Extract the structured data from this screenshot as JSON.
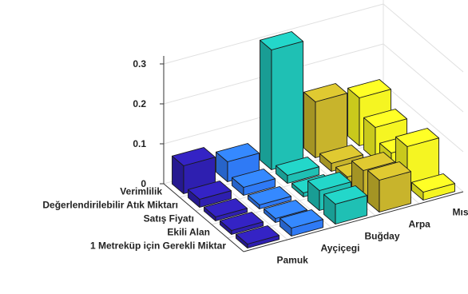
{
  "chart_data": {
    "type": "bar3d",
    "title": "",
    "xlabel": "",
    "ylabel": "",
    "zlabel": "",
    "zlim": [
      0,
      0.32
    ],
    "ztick_labels": [
      "0",
      "0.1",
      "0.2",
      "0.3"
    ],
    "grid": true,
    "criteria": [
      "Verimlilik",
      "Değerlendirilebilir Atık Miktarı",
      "Satış Fiyatı",
      "Ekili Alan",
      "1 Metreküp için Gerekli Miktar"
    ],
    "crops": [
      "Pamuk",
      "Ayçiçegi",
      "Buğday",
      "Arpa",
      "Mısır"
    ],
    "colors": [
      "#2e1fb0",
      "#2f7af5",
      "#1fc0b4",
      "#c8b42c",
      "#f5f522"
    ],
    "values": [
      [
        0.07,
        0.05,
        0.05,
        0.03,
        0.02
      ],
      [
        0.02,
        0.02,
        0.02,
        0.02,
        0.02
      ],
      [
        0.01,
        0.01,
        0.01,
        0.02,
        0.02
      ],
      [
        0.01,
        0.01,
        0.02,
        0.02,
        0.02
      ],
      [
        0.01,
        0.02,
        0.03,
        0.02,
        0.02
      ]
    ],
    "values_note_order": "rows = criteria, columns = crops",
    "overrides": [
      {
        "criterion": 0,
        "crop": 2,
        "value": 0.3
      },
      {
        "criterion": 0,
        "crop": 3,
        "value": 0.14
      },
      {
        "criterion": 0,
        "crop": 4,
        "value": 0.12
      },
      {
        "criterion": 1,
        "crop": 4,
        "value": 0.08
      },
      {
        "criterion": 1,
        "crop": 3,
        "value": 0.02
      },
      {
        "criterion": 2,
        "crop": 4,
        "value": 0.05
      },
      {
        "criterion": 2,
        "crop": 3,
        "value": 0.02
      },
      {
        "criterion": 3,
        "crop": 4,
        "value": 0.1
      },
      {
        "criterion": 3,
        "crop": 3,
        "value": 0.07
      },
      {
        "criterion": 3,
        "crop": 2,
        "value": 0.05
      },
      {
        "criterion": 4,
        "crop": 3,
        "value": 0.08
      },
      {
        "criterion": 4,
        "crop": 2,
        "value": 0.05
      },
      {
        "criterion": 4,
        "crop": 1,
        "value": 0.02
      }
    ]
  }
}
